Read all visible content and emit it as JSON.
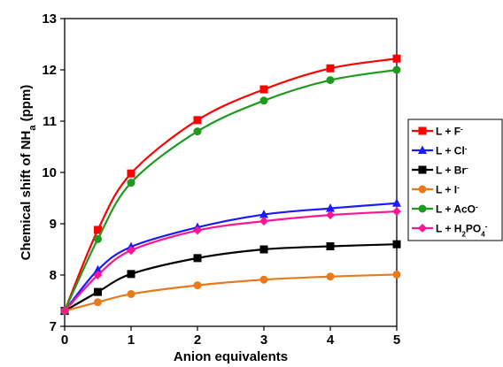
{
  "chart_data": {
    "type": "line",
    "xlabel": "Anion equivalents",
    "ylabel_main": "Chemical shift of NH",
    "ylabel_sub": "a",
    "ylabel_tail": " (ppm)",
    "xlim": [
      0,
      5
    ],
    "ylim": [
      7,
      13
    ],
    "xticks": [
      0,
      1,
      2,
      3,
      4,
      5
    ],
    "yticks": [
      7,
      8,
      9,
      10,
      11,
      12,
      13
    ],
    "grid": false,
    "legend_position": "right",
    "x": [
      0,
      0.5,
      1,
      2,
      3,
      4,
      5
    ],
    "series": [
      {
        "legend": {
          "prefix": "L + F",
          "sub": "",
          "sup": "-"
        },
        "color": "#ff0000",
        "marker": "square",
        "values": [
          7.3,
          8.88,
          9.98,
          11.02,
          11.62,
          12.03,
          12.22
        ]
      },
      {
        "legend": {
          "prefix": "L + Cl",
          "sub": "",
          "sup": "-"
        },
        "color": "#1a1aff",
        "marker": "triangle",
        "values": [
          7.3,
          8.1,
          8.55,
          8.93,
          9.18,
          9.3,
          9.4
        ]
      },
      {
        "legend": {
          "prefix": "L + Br",
          "sub": "",
          "sup": "-"
        },
        "color": "#000000",
        "marker": "square",
        "values": [
          7.3,
          7.67,
          8.02,
          8.33,
          8.5,
          8.56,
          8.6
        ]
      },
      {
        "legend": {
          "prefix": "L + I",
          "sub": "",
          "sup": "-"
        },
        "color": "#e87a1c",
        "marker": "circle",
        "values": [
          7.3,
          7.47,
          7.63,
          7.8,
          7.91,
          7.97,
          8.01
        ]
      },
      {
        "legend": {
          "prefix": "L + AcO",
          "sub": "",
          "sup": "-"
        },
        "color": "#1f9a1f",
        "marker": "circle",
        "values": [
          7.3,
          8.7,
          9.8,
          10.8,
          11.4,
          11.8,
          12.0
        ]
      },
      {
        "legend": {
          "prefix": "L + H",
          "sub": "2",
          "mid": "PO",
          "sub2": "4",
          "sup": "-"
        },
        "color": "#ff1493",
        "marker": "diamond",
        "values": [
          7.3,
          8.0,
          8.48,
          8.87,
          9.05,
          9.17,
          9.24
        ]
      }
    ]
  }
}
